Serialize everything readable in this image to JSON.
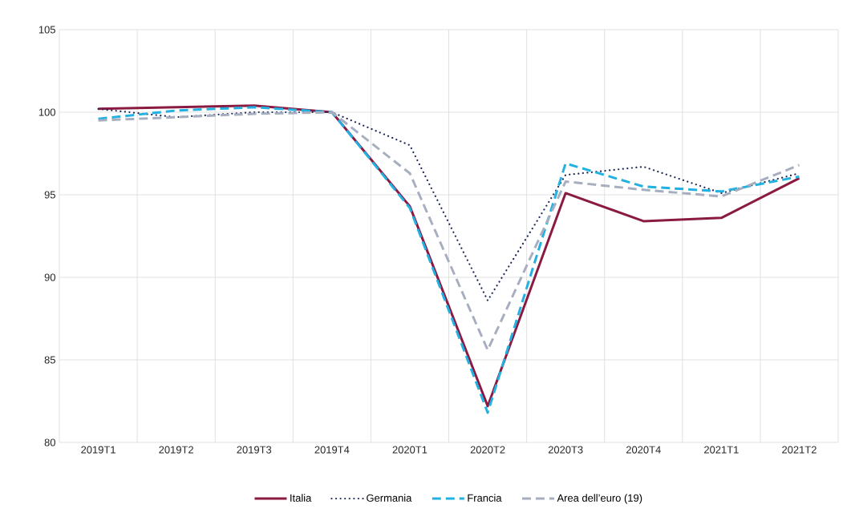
{
  "chart_data": {
    "type": "line",
    "categories": [
      "2019T1",
      "2019T2",
      "2019T3",
      "2019T4",
      "2020T1",
      "2020T2",
      "2020T3",
      "2020T4",
      "2021T1",
      "2021T2"
    ],
    "series": [
      {
        "name": "Italia",
        "color": "#8b1a42",
        "line_style": "solid",
        "values": [
          100.2,
          100.3,
          100.4,
          100.0,
          94.3,
          82.2,
          95.1,
          93.4,
          93.6,
          96.0
        ]
      },
      {
        "name": "Germania",
        "color": "#1f2a5a",
        "line_style": "dotted",
        "values": [
          100.2,
          99.7,
          100.0,
          100.0,
          98.0,
          88.6,
          96.2,
          96.7,
          95.1,
          96.3
        ]
      },
      {
        "name": "Francia",
        "color": "#22b1e0",
        "line_style": "dashed",
        "values": [
          99.6,
          100.1,
          100.3,
          100.0,
          94.2,
          81.8,
          96.9,
          95.5,
          95.2,
          96.1
        ]
      },
      {
        "name": "Area dell’euro (19)",
        "color": "#a6aebf",
        "line_style": "dashed",
        "values": [
          99.5,
          99.7,
          99.9,
          100.0,
          96.3,
          85.6,
          95.8,
          95.3,
          94.9,
          96.8
        ]
      }
    ],
    "ylim": [
      80,
      105
    ],
    "yticks": [
      80,
      85,
      90,
      95,
      100,
      105
    ],
    "grid": true,
    "legend": "bottom",
    "marker": "none"
  }
}
